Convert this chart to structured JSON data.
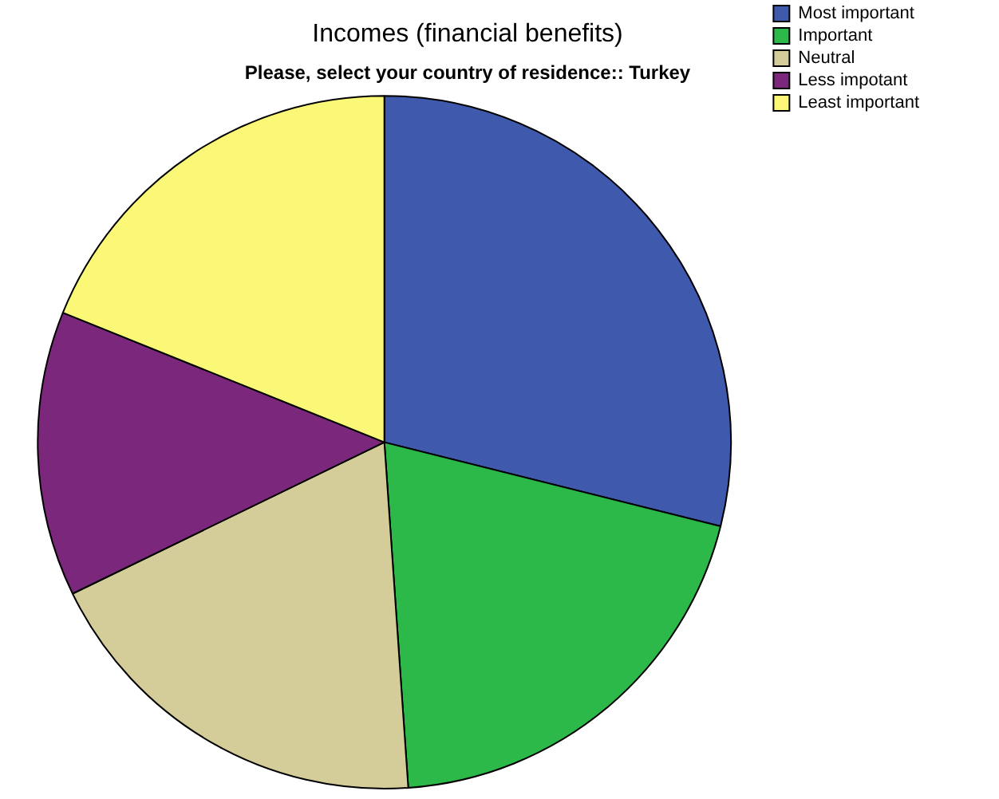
{
  "chart_data": {
    "type": "pie",
    "title": "Incomes (financial benefits)",
    "subtitle": "Please, select your country of residence:: Turkey",
    "categories": [
      "Most important",
      "Important",
      "Neutral",
      "Less impotant",
      "Least important"
    ],
    "values": [
      28.9,
      20,
      18.9,
      13.3,
      18.9
    ],
    "colors": [
      "#3f59ad",
      "#2db84a",
      "#d4cd9a",
      "#7b287c",
      "#fbf878"
    ],
    "legend": "top right"
  }
}
